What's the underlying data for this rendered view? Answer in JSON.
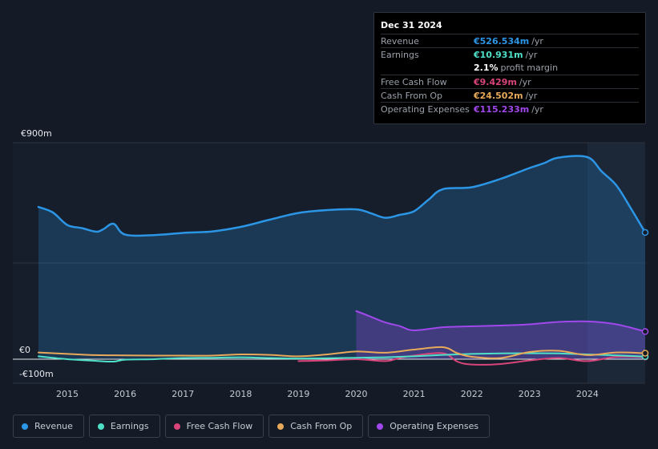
{
  "colors": {
    "revenue": "#2c96e6",
    "earnings": "#4fe0c8",
    "free_cash_flow": "#d9457a",
    "cash_from_op": "#e8a95a",
    "operating_expenses": "#a148ec"
  },
  "tooltip": {
    "date": "Dec 31 2024",
    "rows": [
      {
        "label": "Revenue",
        "value": "€526.534m",
        "unit": "/yr",
        "color": "#2c96e6"
      },
      {
        "label": "Earnings",
        "value": "€10.931m",
        "unit": "/yr",
        "color": "#4fe0c8"
      },
      {
        "label": "",
        "value": "2.1%",
        "unit": "profit margin",
        "color": "#ffffff"
      },
      {
        "label": "Free Cash Flow",
        "value": "€9.429m",
        "unit": "/yr",
        "color": "#d9457a"
      },
      {
        "label": "Cash From Op",
        "value": "€24.502m",
        "unit": "/yr",
        "color": "#e8a95a"
      },
      {
        "label": "Operating Expenses",
        "value": "€115.233m",
        "unit": "/yr",
        "color": "#a148ec"
      }
    ]
  },
  "legend": [
    {
      "label": "Revenue",
      "color": "#2c96e6"
    },
    {
      "label": "Earnings",
      "color": "#4fe0c8"
    },
    {
      "label": "Free Cash Flow",
      "color": "#d9457a"
    },
    {
      "label": "Cash From Op",
      "color": "#e8a95a"
    },
    {
      "label": "Operating Expenses",
      "color": "#a148ec"
    }
  ],
  "chart_data": {
    "type": "area",
    "title": "",
    "xlabel": "",
    "ylabel": "",
    "y_tick_labels": [
      "€900m",
      "€0",
      "-€100m"
    ],
    "ylim": [
      -100,
      900
    ],
    "xlim": [
      2014.5,
      2025.0
    ],
    "x_ticks": [
      2015,
      2016,
      2017,
      2018,
      2019,
      2020,
      2021,
      2022,
      2023,
      2024
    ],
    "x_tick_labels": [
      "2015",
      "2016",
      "2017",
      "2018",
      "2019",
      "2020",
      "2021",
      "2022",
      "2023",
      "2024"
    ],
    "highlight_from": 2024.0,
    "series": [
      {
        "name": "Revenue",
        "key": "revenue",
        "x": [
          2014.5,
          2014.75,
          2015.0,
          2015.25,
          2015.5,
          2015.62,
          2015.8,
          2016.0,
          2016.5,
          2017.0,
          2017.5,
          2018.0,
          2018.5,
          2019.0,
          2019.5,
          2020.0,
          2020.25,
          2020.5,
          2020.75,
          2021.0,
          2021.25,
          2021.5,
          2022.0,
          2022.5,
          2023.0,
          2023.25,
          2023.5,
          2024.0,
          2024.25,
          2024.5,
          2024.75,
          2025.0
        ],
        "values": [
          633,
          610,
          558,
          545,
          530,
          540,
          563,
          518,
          516,
          525,
          531,
          550,
          580,
          608,
          620,
          623,
          607,
          588,
          600,
          615,
          663,
          707,
          715,
          750,
          795,
          815,
          838,
          840,
          780,
          723,
          628,
          527
        ]
      },
      {
        "name": "Earnings",
        "key": "earnings",
        "x": [
          2014.5,
          2015.0,
          2015.5,
          2015.8,
          2016.0,
          2016.5,
          2017.0,
          2017.5,
          2018.0,
          2018.5,
          2019.0,
          2019.5,
          2020.0,
          2020.5,
          2021.0,
          2021.5,
          2022.0,
          2022.5,
          2023.0,
          2023.5,
          2024.0,
          2024.5,
          2025.0
        ],
        "values": [
          12,
          0,
          -7,
          -10,
          -2,
          0,
          5,
          6,
          8,
          5,
          3,
          4,
          6,
          8,
          12,
          18,
          22,
          24,
          25,
          24,
          20,
          16,
          11
        ]
      },
      {
        "name": "Free Cash Flow",
        "key": "free_cash_flow",
        "x": [
          2019.0,
          2019.5,
          2020.0,
          2020.5,
          2020.75,
          2021.0,
          2021.5,
          2021.75,
          2022.0,
          2022.5,
          2023.0,
          2023.5,
          2024.0,
          2024.5,
          2025.0
        ],
        "values": [
          -8,
          -5,
          0,
          -8,
          5,
          15,
          25,
          -10,
          -22,
          -20,
          -5,
          5,
          -8,
          10,
          9
        ]
      },
      {
        "name": "Cash From Op",
        "key": "cash_from_op",
        "x": [
          2014.5,
          2015.0,
          2015.5,
          2016.0,
          2016.5,
          2017.0,
          2017.5,
          2018.0,
          2018.5,
          2019.0,
          2019.5,
          2020.0,
          2020.5,
          2021.0,
          2021.5,
          2021.75,
          2022.0,
          2022.5,
          2023.0,
          2023.5,
          2024.0,
          2024.5,
          2025.0
        ],
        "values": [
          28,
          22,
          17,
          16,
          15,
          15,
          15,
          20,
          18,
          12,
          20,
          32,
          27,
          40,
          50,
          25,
          10,
          5,
          30,
          35,
          17,
          28,
          25
        ]
      },
      {
        "name": "Operating Expenses",
        "key": "operating_expenses",
        "x": [
          2020.0,
          2020.25,
          2020.5,
          2020.75,
          2021.0,
          2021.5,
          2022.0,
          2022.5,
          2023.0,
          2023.5,
          2024.0,
          2024.5,
          2025.0
        ],
        "values": [
          200,
          177,
          153,
          138,
          120,
          133,
          137,
          140,
          145,
          155,
          157,
          145,
          115
        ]
      }
    ]
  }
}
